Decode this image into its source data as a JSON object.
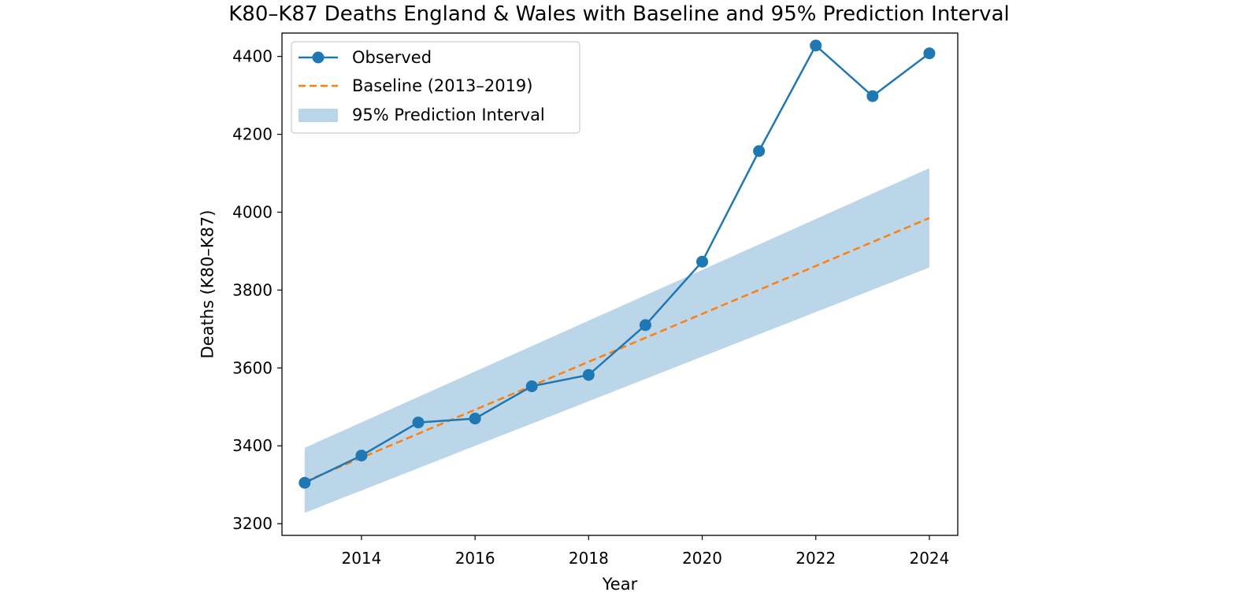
{
  "chart_data": {
    "type": "line",
    "title": "K80–K87 Deaths England & Wales with Baseline and 95% Prediction Interval",
    "xlabel": "Year",
    "ylabel": "Deaths (K80–K87)",
    "xlim": [
      2012.6,
      2024.5
    ],
    "ylim": [
      3170,
      4460
    ],
    "xticks": [
      2014,
      2016,
      2018,
      2020,
      2022,
      2024
    ],
    "yticks": [
      3200,
      3400,
      3600,
      3800,
      4000,
      4200,
      4400
    ],
    "grid": false,
    "legend_position": "upper-left",
    "series": [
      {
        "name": "Observed",
        "kind": "line-marker",
        "color": "#1f77b4",
        "x": [
          2013,
          2014,
          2015,
          2016,
          2017,
          2018,
          2019,
          2020,
          2021,
          2022,
          2023,
          2024
        ],
        "values": [
          3305,
          3375,
          3460,
          3470,
          3553,
          3582,
          3710,
          3873,
          4157,
          4428,
          4298,
          4408
        ]
      },
      {
        "name": "Baseline (2013–2019)",
        "kind": "dashed-line",
        "color": "#ff7f0e",
        "x": [
          2013,
          2024
        ],
        "values": [
          3308,
          3985
        ]
      },
      {
        "name": "95% Prediction Interval",
        "kind": "band",
        "color": "#1f77b4",
        "opacity": 0.3,
        "x": [
          2013,
          2024
        ],
        "lower": [
          3228,
          3858
        ],
        "upper": [
          3395,
          4113
        ]
      }
    ]
  }
}
